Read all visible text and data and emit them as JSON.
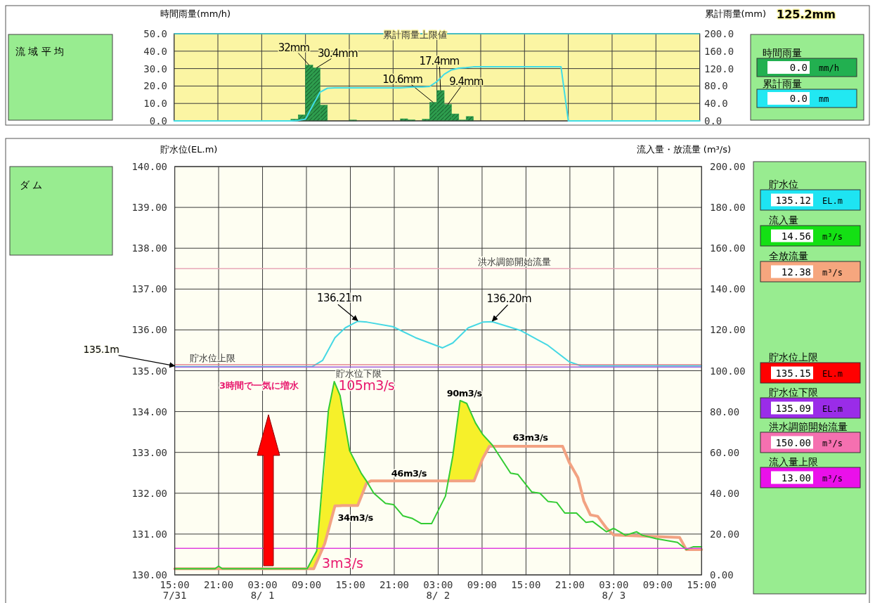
{
  "chart_data": [
    {
      "type": "other",
      "title": "流 域 平 均"
    },
    {
      "type": "bar",
      "ylabel": "時間雨量(mm/h)",
      "categories": [
        null,
        null,
        null,
        null,
        null,
        null,
        null,
        null,
        null,
        null,
        null,
        null,
        null,
        null,
        null,
        null,
        null,
        null,
        null,
        null,
        null,
        null,
        null,
        null,
        null,
        null,
        null,
        null,
        null,
        null,
        null,
        null,
        null,
        null,
        null,
        null,
        null,
        null,
        null,
        null,
        null,
        null,
        null,
        null,
        null,
        null,
        null,
        null,
        null,
        null,
        null,
        null,
        null,
        null,
        null,
        null,
        null,
        null,
        null,
        null,
        null,
        null,
        null,
        null,
        null,
        null,
        null,
        null,
        null,
        null,
        null,
        null
      ],
      "ylim": [
        0,
        50
      ],
      "yticks": [
        {
          "value": 0,
          "label": "0.0"
        },
        {
          "value": 10,
          "label": "10.0"
        },
        {
          "value": 20,
          "label": "20.0"
        },
        {
          "value": 30,
          "label": "30.0"
        },
        {
          "value": 40,
          "label": "40.0"
        },
        {
          "value": 50,
          "label": "50.0"
        }
      ],
      "grid": true,
      "color": "#2e9e4e",
      "values": [
        0,
        0,
        0,
        0,
        0,
        0,
        0,
        0,
        0,
        0,
        0,
        0,
        0,
        0,
        0,
        0,
        1,
        3.5,
        32,
        30.4,
        9,
        0,
        0,
        0,
        0.5,
        0,
        0,
        0,
        0,
        0,
        0,
        1.2,
        0.6,
        0,
        1,
        10.6,
        17.4,
        9.4,
        4,
        0.5,
        2.5,
        0,
        0,
        0,
        0,
        0,
        0,
        0,
        0,
        0,
        0,
        0,
        0,
        0,
        0,
        0,
        0,
        0,
        0,
        0,
        0,
        0,
        0,
        0,
        0,
        0,
        0,
        0,
        0,
        0,
        0,
        0
      ],
      "value_labels": [
        null,
        null,
        null,
        null,
        null,
        null,
        null,
        null,
        null,
        null,
        null,
        null,
        null,
        null,
        null,
        null,
        null,
        null,
        "32mm",
        "30.4mm",
        null,
        null,
        null,
        null,
        null,
        null,
        null,
        null,
        null,
        null,
        null,
        null,
        null,
        null,
        null,
        "10.6mm",
        "17.4mm",
        "9.4mm",
        null,
        null,
        null,
        null,
        null,
        null,
        null,
        null,
        null,
        null,
        null,
        null,
        null,
        null,
        null,
        null,
        null,
        null,
        null,
        null,
        null,
        null,
        null,
        null,
        null,
        null,
        null,
        null,
        null,
        null,
        null,
        null,
        null,
        null
      ]
    },
    {
      "type": "line",
      "ylabel": "累計雨量(mm)",
      "categories": [
        null,
        null,
        null,
        null,
        null,
        null,
        null,
        null,
        null,
        null,
        null,
        null,
        null,
        null,
        null,
        null,
        null,
        null,
        null,
        null,
        null,
        null,
        null,
        null,
        null,
        null,
        null,
        null,
        null,
        null,
        null,
        null,
        null,
        null,
        null,
        null,
        null,
        null,
        null,
        null,
        null,
        null,
        null,
        null,
        null,
        null,
        null,
        null,
        null,
        null,
        null,
        null,
        null,
        null,
        null,
        null,
        null,
        null,
        null,
        null,
        null,
        null,
        null,
        null,
        null,
        null,
        null,
        null,
        null,
        null,
        null,
        null,
        null
      ],
      "ylim": [
        0,
        200
      ],
      "yticks": [
        {
          "value": 0,
          "label": "0.0"
        },
        {
          "value": 40,
          "label": "40.0"
        },
        {
          "value": 80,
          "label": "80.0"
        },
        {
          "value": 120,
          "label": "120.0"
        },
        {
          "value": 160,
          "label": "160.0"
        },
        {
          "value": 200,
          "label": "200.0"
        }
      ],
      "series": [
        {
          "color": "#40dde6",
          "values": [
            0,
            0,
            0,
            0,
            0,
            0,
            0,
            0,
            0,
            0,
            0,
            0,
            0,
            0,
            0,
            0,
            0,
            1,
            4,
            36,
            66,
            75,
            76,
            76,
            76,
            76,
            76,
            76,
            76,
            76,
            76,
            76,
            77,
            78,
            78,
            79,
            90,
            107,
            117,
            121,
            122,
            124,
            124,
            124,
            124,
            124,
            124,
            124,
            124,
            124,
            124,
            124,
            124,
            124,
            0,
            0,
            0,
            0,
            0,
            0,
            0,
            0,
            0,
            0,
            0,
            0,
            0,
            0,
            0,
            0,
            0,
            0,
            0
          ]
        }
      ],
      "ref_lines": [
        {
          "axis": "y",
          "value": 200,
          "label": "累計雨量上限値",
          "color": "#40dde6"
        }
      ],
      "annotations": [
        "125.2mm"
      ]
    },
    {
      "type": "other",
      "annotations": [
        "時間雨量",
        "累計雨量"
      ],
      "categories": [
        "0.0 mm/h",
        "0.0 mm"
      ],
      "colors": [
        "#22b050",
        "#22e8f2"
      ]
    },
    {
      "type": "other",
      "title": "ダ ム"
    },
    {
      "type": "line",
      "ylabel": "貯水位(EL.m)",
      "y2label": "流入量・放流量 (m³/s)",
      "xlim": [
        "--07-31T15:00",
        "--08-03T15:00"
      ],
      "xticks": [
        {
          "value": "--07-31T15:00",
          "label": "15:00\n7/31"
        },
        {
          "value": "--07-31T21:00",
          "label": "21:00"
        },
        {
          "value": "--08-01T03:00",
          "label": "03:00\n8/ 1"
        },
        {
          "value": "--08-01T09:00",
          "label": "09:00"
        },
        {
          "value": "--08-01T15:00",
          "label": "15:00"
        },
        {
          "value": "--08-01T21:00",
          "label": "21:00"
        },
        {
          "value": "--08-02T03:00",
          "label": "03:00\n8/ 2"
        },
        {
          "value": "--08-02T09:00",
          "label": "09:00"
        },
        {
          "value": "--08-02T15:00",
          "label": "15:00"
        },
        {
          "value": "--08-02T21:00",
          "label": "21:00"
        },
        {
          "value": "--08-03T03:00",
          "label": "03:00\n8/ 3"
        },
        {
          "value": "--08-03T09:00",
          "label": "09:00"
        },
        {
          "value": "--08-03T15:00",
          "label": "15:00"
        }
      ],
      "ylim": [
        130,
        140
      ],
      "yticks": [
        {
          "value": 130,
          "label": "130.00"
        },
        {
          "value": 131,
          "label": "131.00"
        },
        {
          "value": 132,
          "label": "132.00"
        },
        {
          "value": 133,
          "label": "133.00"
        },
        {
          "value": 134,
          "label": "134.00"
        },
        {
          "value": 135,
          "label": "135.00"
        },
        {
          "value": 136,
          "label": "136.00"
        },
        {
          "value": 137,
          "label": "137.00"
        },
        {
          "value": 138,
          "label": "138.00"
        },
        {
          "value": 139,
          "label": "139.00"
        },
        {
          "value": 140,
          "label": "140.00"
        }
      ],
      "y2lim": [
        0,
        200
      ],
      "y2ticks": [
        {
          "value": 0,
          "label": "0.00"
        },
        {
          "value": 20,
          "label": "20.00"
        },
        {
          "value": 40,
          "label": "40.00"
        },
        {
          "value": 60,
          "label": "60.00"
        },
        {
          "value": 80,
          "label": "80.00"
        },
        {
          "value": 100,
          "label": "100.00"
        },
        {
          "value": 120,
          "label": "120.00"
        },
        {
          "value": 140,
          "label": "140.00"
        },
        {
          "value": 160,
          "label": "160.00"
        },
        {
          "value": 180,
          "label": "180.00"
        },
        {
          "value": 200,
          "label": "200.00"
        }
      ],
      "grid": true,
      "series": [
        {
          "type": "line",
          "axis": "y2",
          "color": "#f2a282",
          "x": [
            "--07-31T15:00",
            "--08-01T09:06",
            "--08-01T10:00",
            "--08-01T10:24",
            "--08-01T11:30",
            "--08-01T12:00",
            "--08-01T12:48",
            "--08-01T12:54",
            "--08-01T13:36",
            "--08-01T13:54",
            "--08-01T14:54",
            "--08-01T16:00",
            "--08-01T16:30",
            "--08-01T17:12",
            "--08-01T17:24",
            "--08-01T17:48",
            "--08-02T04:18",
            "--08-02T05:00",
            "--08-02T06:00",
            "--08-02T06:54",
            "--08-02T07:54",
            "--08-02T08:06",
            "--08-02T09:06",
            "--08-02T10:00",
            "--08-02T10:24",
            "--08-02T10:30",
            "--08-02T20:00",
            "--08-02T20:54",
            "--08-02T22:06",
            "--08-02T22:54",
            "--08-02T23:48",
            "--08-03T00:48",
            "--08-03T02:00",
            "--08-03T03:00",
            "--08-03T12:00",
            "--08-03T12:54",
            "--08-03T15:00"
          ],
          "values": [
            3,
            3,
            3,
            6.3,
            15.3,
            21.9,
            32.5,
            33.8,
            33.9,
            34,
            34,
            34,
            38.5,
            44.8,
            45.2,
            46,
            46,
            46,
            46,
            46,
            46,
            47.9,
            57.1,
            63,
            63,
            63,
            63,
            55.2,
            47.6,
            36.2,
            29.4,
            28.7,
            22.9,
            19.5,
            18.3,
            12.4,
            12.4
          ],
          "lower": [
            null,
            3,
            3,
            6.3,
            15.3,
            21.9,
            32.5,
            33.8,
            33.9,
            34,
            34,
            34,
            38.5,
            44.8,
            45.2,
            null,
            46,
            46,
            46,
            46,
            46,
            47.9,
            57.1,
            63,
            63,
            63,
            null,
            null,
            null,
            null,
            null,
            null,
            null,
            null,
            null,
            null,
            null
          ],
          "upper": [
            null,
            3,
            8,
            11.7,
            53,
            80.5,
            94.7,
            93.8,
            87.8,
            81.6,
            60.8,
            53.2,
            49.7,
            46,
            45.2,
            null,
            46,
            58.3,
            85.4,
            84,
            75.5,
            74.4,
            68.7,
            65,
            63.6,
            63,
            null,
            null,
            null,
            null,
            null,
            null,
            null,
            null,
            null,
            null,
            null
          ]
        },
        {
          "type": "line",
          "axis": "y2",
          "color": "#33cc33",
          "x": [
            "--07-31T15:00",
            "--07-31T20:30",
            "--07-31T21:00",
            "--07-31T21:30",
            "--08-01T09:06",
            "--08-01T10:24",
            "--08-01T12:00",
            "--08-01T12:48",
            "--08-01T13:36",
            "--08-01T14:54",
            "--08-01T16:30",
            "--08-01T17:12",
            "--08-01T18:12",
            "--08-01T19:48",
            "--08-01T20:54",
            "--08-01T22:12",
            "--08-01T23:30",
            "--08-02T00:42",
            "--08-02T02:06",
            "--08-02T04:00",
            "--08-02T05:00",
            "--08-02T06:00",
            "--08-02T06:54",
            "--08-02T08:06",
            "--08-02T09:06",
            "--08-02T10:24",
            "--08-02T12:54",
            "--08-02T13:54",
            "--08-02T15:48",
            "--08-02T16:54",
            "--08-02T18:00",
            "--08-02T19:12",
            "--08-02T20:18",
            "--08-02T21:54",
            "--08-02T23:12",
            "--08-03T00:06",
            "--08-03T02:00",
            "--08-03T03:00",
            "--08-03T04:36",
            "--08-03T06:06",
            "--08-03T06:54",
            "--08-03T08:48",
            "--08-03T11:42",
            "--08-03T12:54",
            "--08-03T13:54",
            "--08-03T15:00"
          ],
          "values": [
            3,
            3,
            4.3,
            3,
            3,
            11.7,
            80.5,
            94.7,
            87.8,
            60.8,
            49.7,
            46,
            40,
            35,
            34.4,
            28.9,
            27.6,
            25.1,
            25.1,
            38.6,
            58.3,
            85.4,
            84,
            74.4,
            68.7,
            63.6,
            49.8,
            49.2,
            40.6,
            40,
            36,
            35.5,
            30.3,
            30.3,
            25.7,
            26.2,
            21.1,
            22.8,
            19.4,
            21.1,
            19.4,
            17.7,
            15.9,
            12.5,
            13.8,
            13.8
          ]
        },
        {
          "type": "line",
          "color": "#45d8e4",
          "x": [
            "--07-31T15:00",
            "--08-01T09:48",
            "--08-01T11:12",
            "--08-01T12:54",
            "--08-01T14:18",
            "--08-01T16:00",
            "--08-01T17:18",
            "--08-01T20:48",
            "--08-01T23:54",
            "--08-02T03:36",
            "--08-02T05:00",
            "--08-02T07:06",
            "--08-02T09:06",
            "--08-02T10:24",
            "--08-02T14:12",
            "--08-02T18:00",
            "--08-02T20:54",
            "--08-02T22:30",
            "--08-03T15:00"
          ],
          "values": [
            135.1,
            135.1,
            135.25,
            135.81,
            136.05,
            136.21,
            136.19,
            136.08,
            135.81,
            135.56,
            135.68,
            136.05,
            136.19,
            136.2,
            135.99,
            135.62,
            135.22,
            135.12,
            135.12
          ]
        }
      ],
      "ref_lines": [
        {
          "axis": "y2",
          "value": 150,
          "label": "洪水調節開始流量",
          "color": "#e8a8b8"
        },
        {
          "axis": "y",
          "value": 135.15,
          "label": "貯水位上限",
          "color": "#e07080"
        },
        {
          "axis": "y",
          "value": 135.09,
          "label": "貯水位下限",
          "color": "#a060e0"
        },
        {
          "axis": "y2",
          "value": 13,
          "color": "#e040e0"
        }
      ],
      "annotations": [
        {
          "text": "135.1m",
          "x": "--07-31T15:00",
          "y": 135.1
        },
        {
          "text": "136.21m",
          "x": "--08-01T16:00",
          "y": 136.21
        },
        {
          "text": "136.20m",
          "x": "--08-02T10:24",
          "y": 136.2
        },
        {
          "text": "105m3/s",
          "x": "--08-01T12:48",
          "y": 134.74
        },
        {
          "text": "90m3/s",
          "x": "--08-02T06:00",
          "y": 134.27
        },
        {
          "text": "63m3/s",
          "x": "--08-02T15:00",
          "y": 133.15
        },
        {
          "text": "46m3/s",
          "x": "--08-01T23:00",
          "y": 132.3
        },
        {
          "text": "34m3/s",
          "x": "--08-01T15:00",
          "y": 131.7
        },
        "3m3/s",
        "3時間で一気に増水"
      ]
    },
    {
      "type": "other",
      "annotations": [
        "貯水位",
        "流入量",
        "全放流量",
        "貯水位上限",
        "貯水位下限",
        "洪水調節開始流量",
        "流入量上限"
      ],
      "categories": [
        "135.12 EL.m",
        "14.56 m³/s",
        "12.38 m³/s",
        "135.15 EL.m",
        "135.09 EL.m",
        "150.00 m³/s",
        "13.00 m³/s"
      ],
      "colors": [
        "#1ee4f2",
        "#14e014",
        "#f6a67e",
        "#ff0000",
        "#9a2ce8",
        "#f570b0",
        "#ea10ea"
      ]
    }
  ]
}
